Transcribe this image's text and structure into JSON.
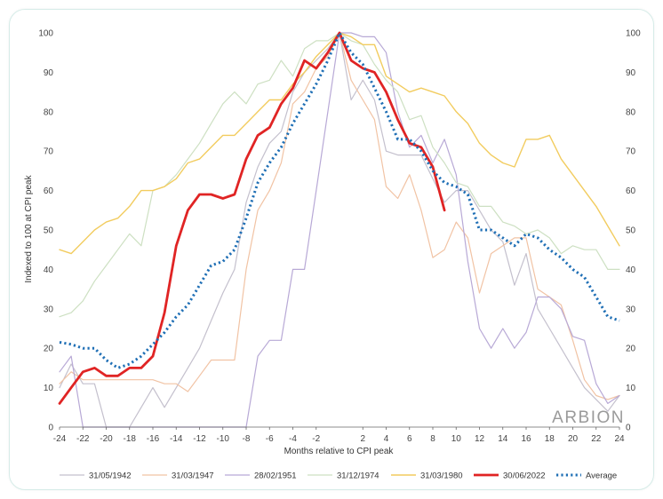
{
  "chart_data": {
    "type": "line",
    "title": "",
    "xlabel": "Months relative to CPI peak",
    "ylabel": "Indexed to 100 at CPI peak",
    "xlim": [
      -24,
      24
    ],
    "ylim": [
      0,
      100
    ],
    "x_ticks": [
      "-24",
      "-22",
      "-20",
      "-18",
      "-16",
      "-14",
      "-12",
      "-10",
      "-8",
      "-6",
      "-4",
      "-2",
      "2",
      "4",
      "6",
      "8",
      "10",
      "12",
      "14",
      "16",
      "18",
      "20",
      "22",
      "24"
    ],
    "y_ticks": [
      0,
      10,
      20,
      30,
      40,
      50,
      60,
      70,
      80,
      90,
      100
    ],
    "grid": false,
    "legend_position": "bottom",
    "watermark": "ARBION",
    "series": [
      {
        "name": "31/05/1942",
        "color": "#c4c0cd",
        "width": 1.2,
        "dash": "",
        "x": [
          -24,
          -23,
          -22,
          -21,
          -20,
          -19,
          -18,
          -17,
          -16,
          -15,
          -14,
          -13,
          -12,
          -11,
          -10,
          -9,
          -8,
          -7,
          -6,
          -5,
          -4,
          -3,
          -2,
          -1,
          0,
          1,
          2,
          3,
          4,
          5,
          6,
          7,
          8,
          9,
          10,
          11,
          12,
          13,
          14,
          15,
          16,
          17,
          18,
          19,
          20,
          21,
          22,
          23,
          24
        ],
        "y": [
          10,
          16,
          11,
          11,
          0,
          0,
          0,
          5,
          10,
          5,
          10,
          15,
          20,
          27,
          34,
          40,
          57,
          66,
          72,
          75,
          85,
          90,
          93,
          96,
          100,
          83,
          88,
          83,
          70,
          69,
          69,
          69,
          63,
          57,
          60,
          60,
          55,
          50,
          47,
          36,
          44,
          30,
          25,
          20,
          15,
          10,
          7,
          4,
          8
        ]
      },
      {
        "name": "31/03/1947",
        "color": "#f1c3a4",
        "width": 1.2,
        "dash": "",
        "x": [
          -24,
          -23,
          -22,
          -21,
          -20,
          -19,
          -18,
          -17,
          -16,
          -15,
          -14,
          -13,
          -12,
          -11,
          -10,
          -9,
          -8,
          -7,
          -6,
          -5,
          -4,
          -3,
          -2,
          -1,
          0,
          1,
          2,
          3,
          4,
          5,
          6,
          7,
          8,
          9,
          10,
          11,
          12,
          13,
          14,
          15,
          16,
          17,
          18,
          19,
          20,
          21,
          22,
          23,
          24
        ],
        "y": [
          11,
          14,
          12,
          12,
          12,
          12,
          12,
          12,
          12,
          11,
          11,
          9,
          13,
          17,
          17,
          17,
          40,
          55,
          60,
          67,
          82,
          85,
          91,
          94,
          100,
          88,
          83,
          78,
          61,
          58,
          64,
          55,
          43,
          45,
          52,
          48,
          34,
          44,
          46,
          48,
          48,
          35,
          33,
          31,
          22,
          12,
          8,
          7,
          8
        ]
      },
      {
        "name": "28/02/1951",
        "color": "#b8a9d6",
        "width": 1.2,
        "dash": "",
        "x": [
          -24,
          -23,
          -22,
          -21,
          -20,
          -8,
          -7,
          -6,
          -5,
          -4,
          -3,
          -2,
          -1,
          0,
          1,
          2,
          3,
          4,
          5,
          6,
          7,
          8,
          9,
          10,
          11,
          12,
          13,
          14,
          15,
          16,
          17,
          18,
          19,
          20,
          21,
          22,
          23,
          24
        ],
        "y": [
          14,
          18,
          0,
          0,
          0,
          0,
          18,
          22,
          22,
          40,
          40,
          60,
          80,
          100,
          100,
          99,
          99,
          95,
          80,
          71,
          74,
          67,
          73,
          64,
          42,
          25,
          20,
          25,
          20,
          24,
          33,
          33,
          30,
          23,
          22,
          11,
          6,
          8
        ]
      },
      {
        "name": "31/12/1974",
        "color": "#cde0c2",
        "width": 1.2,
        "dash": "",
        "x": [
          -24,
          -23,
          -22,
          -21,
          -20,
          -19,
          -18,
          -17,
          -16,
          -15,
          -14,
          -13,
          -12,
          -11,
          -10,
          -9,
          -8,
          -7,
          -6,
          -5,
          -4,
          -3,
          -2,
          -1,
          0,
          1,
          2,
          3,
          4,
          5,
          6,
          7,
          8,
          9,
          10,
          11,
          12,
          13,
          14,
          15,
          16,
          17,
          18,
          19,
          20,
          21,
          22,
          23,
          24
        ],
        "y": [
          28,
          29,
          32,
          37,
          41,
          45,
          49,
          46,
          60,
          61,
          64,
          68,
          72,
          77,
          82,
          85,
          82,
          87,
          88,
          93,
          89,
          96,
          98,
          98,
          100,
          98,
          97,
          92,
          88,
          85,
          78,
          79,
          71,
          67,
          62,
          61,
          56,
          56,
          52,
          51,
          49,
          50,
          48,
          44,
          46,
          45,
          45,
          40,
          40
        ]
      },
      {
        "name": "31/03/1980",
        "color": "#f2cc5f",
        "width": 1.4,
        "dash": "",
        "x": [
          -24,
          -23,
          -22,
          -21,
          -20,
          -19,
          -18,
          -17,
          -16,
          -15,
          -14,
          -13,
          -12,
          -11,
          -10,
          -9,
          -8,
          -7,
          -6,
          -5,
          -4,
          -3,
          -2,
          -1,
          0,
          1,
          2,
          3,
          4,
          5,
          6,
          7,
          8,
          9,
          10,
          11,
          12,
          13,
          14,
          15,
          16,
          17,
          18,
          19,
          20,
          21,
          22,
          23,
          24
        ],
        "y": [
          45,
          44,
          47,
          50,
          52,
          53,
          56,
          60,
          60,
          61,
          63,
          67,
          68,
          71,
          74,
          74,
          77,
          80,
          83,
          83,
          87,
          90,
          94,
          97,
          100,
          99,
          97,
          97,
          89,
          87,
          85,
          86,
          85,
          84,
          80,
          77,
          72,
          69,
          67,
          66,
          73,
          73,
          74,
          68,
          64,
          60,
          56,
          51,
          46
        ]
      },
      {
        "name": "30/06/2022",
        "color": "#e02424",
        "width": 2.8,
        "dash": "",
        "x": [
          -24,
          -23,
          -22,
          -21,
          -20,
          -19,
          -18,
          -17,
          -16,
          -15,
          -14,
          -13,
          -12,
          -11,
          -10,
          -9,
          -8,
          -7,
          -6,
          -5,
          -4,
          -3,
          -2,
          -1,
          0,
          1,
          2,
          3,
          4,
          5,
          6,
          7,
          8,
          9
        ],
        "y": [
          6,
          10,
          14,
          15,
          13,
          13,
          15,
          15,
          18,
          29,
          46,
          55,
          59,
          59,
          58,
          59,
          68,
          74,
          76,
          82,
          86,
          93,
          91,
          95,
          100,
          93,
          91,
          90,
          85,
          78,
          72,
          71,
          66,
          55
        ]
      },
      {
        "name": "Average",
        "color": "#1f6fb5",
        "width": 3,
        "dash": "2.2,3.2",
        "x": [
          -24,
          -23,
          -22,
          -21,
          -20,
          -19,
          -18,
          -17,
          -16,
          -15,
          -14,
          -13,
          -12,
          -11,
          -10,
          -9,
          -8,
          -7,
          -6,
          -5,
          -4,
          -3,
          -2,
          -1,
          0,
          1,
          2,
          3,
          4,
          5,
          6,
          7,
          8,
          9,
          10,
          11,
          12,
          13,
          14,
          15,
          16,
          17,
          18,
          19,
          20,
          21,
          22,
          23,
          24
        ],
        "y": [
          21.5,
          21,
          20,
          20,
          17,
          15,
          16,
          18,
          21,
          24,
          28,
          31,
          36,
          41,
          42,
          45,
          53,
          62,
          67,
          71,
          77,
          82,
          87,
          93,
          100,
          95,
          92,
          86,
          80,
          73,
          73,
          70,
          65,
          62,
          61,
          59,
          50,
          50,
          48,
          46,
          49,
          48,
          45,
          43,
          40,
          38,
          33,
          28,
          27
        ]
      }
    ]
  }
}
